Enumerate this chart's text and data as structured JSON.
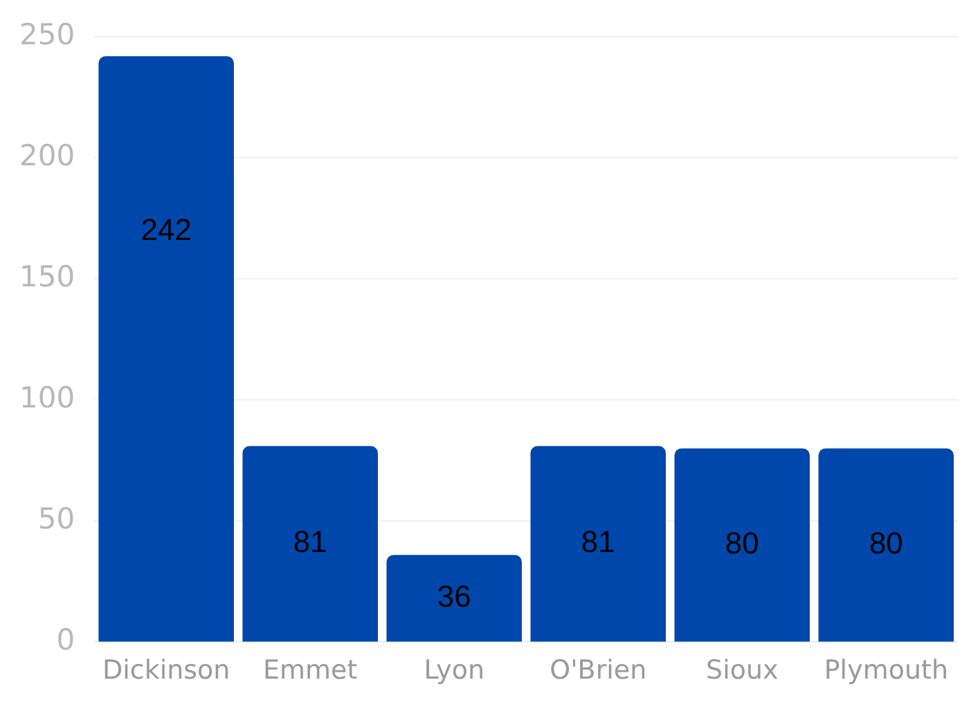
{
  "chart_data": {
    "type": "bar",
    "categories": [
      "Dickinson",
      "Emmet",
      "Lyon",
      "O'Brien",
      "Sioux",
      "Plymouth"
    ],
    "values": [
      242,
      81,
      36,
      81,
      80,
      80
    ],
    "color": "#0047ab",
    "ylim": [
      0,
      250
    ],
    "yticks": [
      0,
      50,
      100,
      150,
      200,
      250
    ],
    "grid": "y",
    "data_labels": true
  }
}
